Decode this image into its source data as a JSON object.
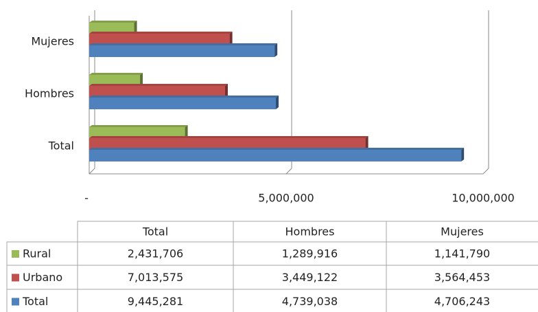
{
  "chart_data": {
    "type": "bar",
    "orientation": "horizontal",
    "categories": [
      "Total",
      "Hombres",
      "Mujeres"
    ],
    "series": [
      {
        "name": "Rural",
        "color": "#9bbb59",
        "values": [
          2431706,
          1289916,
          1141790
        ],
        "value_labels": [
          "2,431,706",
          "1,289,916",
          "1,141,790"
        ]
      },
      {
        "name": "Urbano",
        "color": "#c0504d",
        "values": [
          7013575,
          3449122,
          3564453
        ],
        "value_labels": [
          "7,013,575",
          "3,449,122",
          "3,564,453"
        ]
      },
      {
        "name": "Total",
        "color": "#4f81bd",
        "values": [
          9445281,
          4739038,
          4706243
        ],
        "value_labels": [
          "9,445,281",
          "4,739,038",
          "4,706,243"
        ]
      }
    ],
    "xlim": [
      0,
      10000000
    ],
    "xticks": [
      {
        "value": 0,
        "label": "-"
      },
      {
        "value": 5000000,
        "label": "5,000,000"
      },
      {
        "value": 10000000,
        "label": "10,000,000"
      }
    ],
    "grid": true
  }
}
